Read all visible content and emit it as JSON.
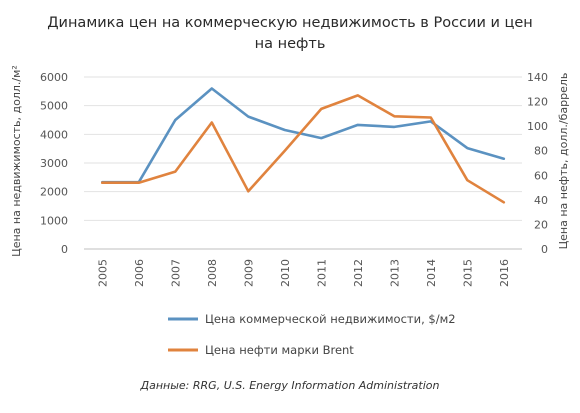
{
  "chart_data": {
    "type": "line",
    "title_lines": [
      "Динамика цен на коммерческую недвижимость в России и цен",
      "на нефть"
    ],
    "categories": [
      "2005",
      "2006",
      "2007",
      "2008",
      "2009",
      "2010",
      "2011",
      "2012",
      "2013",
      "2014",
      "2015",
      "2016"
    ],
    "y_left": {
      "label": "Цена на недвижимость, долл./м²",
      "ylim": [
        0,
        6000
      ],
      "ticks": [
        "0",
        "1000",
        "2000",
        "3000",
        "4000",
        "5000",
        "6000"
      ]
    },
    "y_right": {
      "label": "Цена на нефть, долл./баррель",
      "ylim": [
        0,
        140
      ],
      "ticks": [
        "0",
        "20",
        "40",
        "60",
        "80",
        "100",
        "120",
        "140"
      ]
    },
    "series": [
      {
        "name": "Цена коммерческой недвижимости, $/м2",
        "axis": "left",
        "color": "#5b92c1",
        "values": [
          2330,
          2330,
          4500,
          5600,
          4620,
          4150,
          3870,
          4330,
          4260,
          4450,
          3520,
          3150
        ]
      },
      {
        "name": "Цена нефти марки Brent",
        "axis": "right",
        "color": "#e0833e",
        "values": [
          54,
          54,
          63,
          103,
          47,
          80,
          114,
          125,
          108,
          107,
          56,
          38
        ]
      }
    ],
    "legend_position": "bottom",
    "grid": "horizontal",
    "source": "Данные: RRG, U.S. Energy Information Administration"
  }
}
